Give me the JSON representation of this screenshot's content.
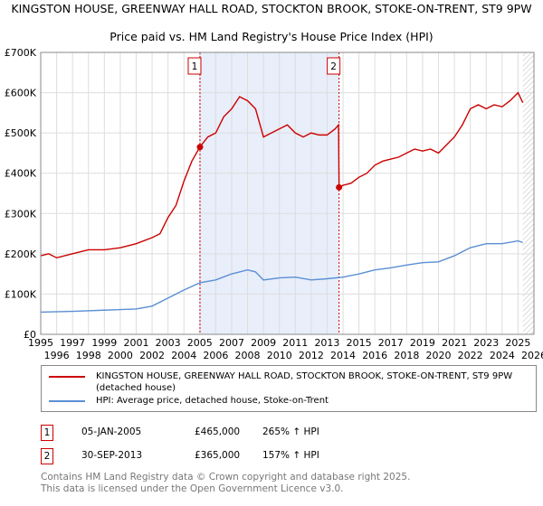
{
  "chart_data": {
    "type": "line",
    "title": "KINGSTON HOUSE, GREENWAY HALL ROAD, STOCKTON BROOK, STOKE-ON-TRENT, ST9 9PW",
    "subtitle": "Price paid vs. HM Land Registry's House Price Index (HPI)",
    "xlim": [
      1995,
      2026
    ],
    "ylim": [
      0,
      700000
    ],
    "x_ticks": [
      "1995",
      "1996",
      "1997",
      "1998",
      "1999",
      "2000",
      "2001",
      "2002",
      "2003",
      "2004",
      "2005",
      "2006",
      "2007",
      "2008",
      "2009",
      "2010",
      "2011",
      "2012",
      "2013",
      "2014",
      "2015",
      "2016",
      "2017",
      "2018",
      "2019",
      "2020",
      "2021",
      "2022",
      "2023",
      "2024",
      "2025",
      "2026"
    ],
    "y_ticks": [
      {
        "v": 0,
        "label": "£0"
      },
      {
        "v": 100000,
        "label": "£100K"
      },
      {
        "v": 200000,
        "label": "£200K"
      },
      {
        "v": 300000,
        "label": "£300K"
      },
      {
        "v": 400000,
        "label": "£400K"
      },
      {
        "v": 500000,
        "label": "£500K"
      },
      {
        "v": 600000,
        "label": "£600K"
      },
      {
        "v": 700000,
        "label": "£700K"
      }
    ],
    "grid": true,
    "series": [
      {
        "name": "KINGSTON HOUSE, GREENWAY HALL ROAD, STOCKTON BROOK, STOKE-ON-TRENT, ST9 9PW (detached house)",
        "color": "#cc0000",
        "x": [
          1995,
          1995.5,
          1996,
          1997,
          1998,
          1999,
          2000,
          2001,
          2002,
          2002.5,
          2003,
          2003.5,
          2004,
          2004.5,
          2005,
          2005.5,
          2006,
          2006.5,
          2007,
          2007.5,
          2008,
          2008.5,
          2009,
          2009.5,
          2010,
          2010.5,
          2011,
          2011.5,
          2012,
          2012.5,
          2013,
          2013.5,
          2013.72,
          2013.75,
          2014,
          2014.5,
          2015,
          2015.5,
          2016,
          2016.5,
          2017,
          2017.5,
          2018,
          2018.5,
          2019,
          2019.5,
          2020,
          2020.5,
          2021,
          2021.5,
          2022,
          2022.5,
          2023,
          2023.5,
          2024,
          2024.5,
          2025,
          2025.3
        ],
        "y": [
          195000,
          200000,
          190000,
          200000,
          210000,
          210000,
          215000,
          225000,
          240000,
          250000,
          290000,
          320000,
          380000,
          430000,
          465000,
          490000,
          500000,
          540000,
          560000,
          590000,
          580000,
          560000,
          490000,
          500000,
          510000,
          520000,
          500000,
          490000,
          500000,
          495000,
          495000,
          510000,
          520000,
          365000,
          370000,
          375000,
          390000,
          400000,
          420000,
          430000,
          435000,
          440000,
          450000,
          460000,
          455000,
          460000,
          450000,
          470000,
          490000,
          520000,
          560000,
          570000,
          560000,
          570000,
          565000,
          580000,
          600000,
          575000
        ]
      },
      {
        "name": "HPI: Average price, detached house, Stoke-on-Trent",
        "color": "#5b8fd4",
        "x": [
          1995,
          1997,
          1999,
          2001,
          2002,
          2003,
          2004,
          2005,
          2006,
          2007,
          2008,
          2008.5,
          2009,
          2010,
          2011,
          2012,
          2013,
          2014,
          2015,
          2016,
          2017,
          2018,
          2019,
          2020,
          2021,
          2022,
          2023,
          2024,
          2025,
          2025.3
        ],
        "y": [
          55000,
          57000,
          60000,
          63000,
          70000,
          90000,
          110000,
          128000,
          135000,
          150000,
          160000,
          155000,
          135000,
          140000,
          142000,
          135000,
          138000,
          142000,
          150000,
          160000,
          165000,
          172000,
          178000,
          180000,
          195000,
          215000,
          225000,
          225000,
          232000,
          228000
        ]
      }
    ],
    "annotations": [
      {
        "label": "1",
        "x": 2005.01,
        "y": 465000
      },
      {
        "label": "2",
        "x": 2013.75,
        "y": 365000
      }
    ],
    "shaded_range": [
      2005.01,
      2013.75
    ],
    "hatched_from": 2025.3
  },
  "legend": {
    "red": "KINGSTON HOUSE, GREENWAY HALL ROAD, STOCKTON BROOK, STOKE-ON-TRENT, ST9 9PW (detached house)",
    "blue": "HPI: Average price, detached house, Stoke-on-Trent"
  },
  "transactions": [
    {
      "num": "1",
      "date": "05-JAN-2005",
      "price": "£465,000",
      "hpi": "265% ↑ HPI"
    },
    {
      "num": "2",
      "date": "30-SEP-2013",
      "price": "£365,000",
      "hpi": "157% ↑ HPI"
    }
  ],
  "footer": {
    "line1": "Contains HM Land Registry data © Crown copyright and database right 2025.",
    "line2": "This data is licensed under the Open Government Licence v3.0."
  }
}
